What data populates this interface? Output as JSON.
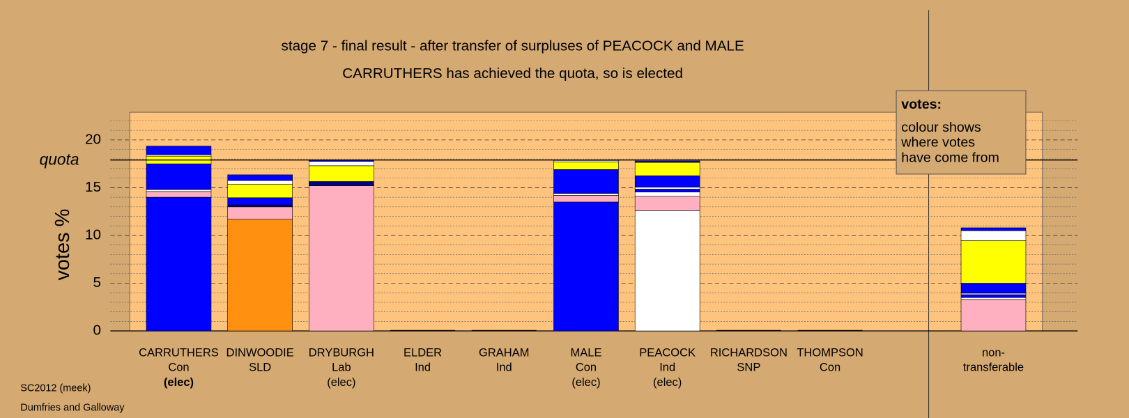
{
  "chart_data": {
    "type": "stacked_bar",
    "title": "stage 7 - final result - after transfer of surpluses of PEACOCK and MALE",
    "subtitle": "CARRUTHERS has achieved the quota, so is elected",
    "y_label": "votes %",
    "ylim": [
      0,
      22.9
    ],
    "yticks": [
      0,
      5,
      10,
      15,
      20
    ],
    "minor_yticks": [
      1,
      2,
      3,
      4,
      6,
      7,
      8,
      9,
      11,
      12,
      13,
      14,
      16,
      17,
      18,
      19,
      21,
      22
    ],
    "quota": 17.9,
    "quota_label": "quota",
    "legend": {
      "title": "votes:",
      "lines": [
        "colour shows",
        "where votes",
        "have come from"
      ]
    },
    "footer": [
      "SC2012 (meek)",
      "Dumfries and Galloway"
    ],
    "bars": [
      {
        "lines": [
          "CARRUTHERS",
          "Con",
          "(elec)"
        ],
        "bold": [
          false,
          false,
          true
        ],
        "segments": [
          {
            "color": "#0000ff",
            "value": 14.0
          },
          {
            "color": "#ffb0c0",
            "value": 0.6
          },
          {
            "color": "#ffffff",
            "value": 0.2
          },
          {
            "color": "#0000ff",
            "value": 2.7
          },
          {
            "color": "#ffff00",
            "value": 0.8
          },
          {
            "color": "#ffffff",
            "value": 0.15
          },
          {
            "color": "#0000ff",
            "value": 0.9
          }
        ]
      },
      {
        "lines": [
          "DINWOODIE",
          "SLD"
        ],
        "bold": [
          false,
          false
        ],
        "segments": [
          {
            "color": "#ff9010",
            "value": 11.7
          },
          {
            "color": "#ffb0c0",
            "value": 1.3
          },
          {
            "color": "#000080",
            "value": 0.2
          },
          {
            "color": "#0000ff",
            "value": 0.75
          },
          {
            "color": "#ffff00",
            "value": 1.4
          },
          {
            "color": "#ffffff",
            "value": 0.4
          },
          {
            "color": "#0000ff",
            "value": 0.6
          }
        ]
      },
      {
        "lines": [
          "DRYBURGH",
          "Lab",
          "(elec)"
        ],
        "bold": [
          false,
          false,
          false
        ],
        "segments": [
          {
            "color": "#ffb0c0",
            "value": 15.2
          },
          {
            "color": "#000080",
            "value": 0.45
          },
          {
            "color": "#ffff00",
            "value": 1.65
          },
          {
            "color": "#ffffff",
            "value": 0.45
          },
          {
            "color": "#0000ff",
            "value": 0.15
          }
        ]
      },
      {
        "lines": [
          "ELDER",
          "Ind"
        ],
        "bold": [
          false,
          false
        ],
        "segments": []
      },
      {
        "lines": [
          "GRAHAM",
          "Ind"
        ],
        "bold": [
          false,
          false
        ],
        "segments": []
      },
      {
        "lines": [
          "MALE",
          "Con",
          "(elec)"
        ],
        "bold": [
          false,
          false,
          false
        ],
        "segments": [
          {
            "color": "#0000ff",
            "value": 13.5
          },
          {
            "color": "#ffb0c0",
            "value": 0.7
          },
          {
            "color": "#ffffff",
            "value": 0.2
          },
          {
            "color": "#0000ff",
            "value": 2.5
          },
          {
            "color": "#ffff00",
            "value": 0.8
          },
          {
            "color": "#ffffff",
            "value": 0.15
          }
        ]
      },
      {
        "lines": [
          "PEACOCK",
          "Ind",
          "(elec)"
        ],
        "bold": [
          false,
          false,
          false
        ],
        "segments": [
          {
            "color": "#ffffff",
            "value": 12.6
          },
          {
            "color": "#ffb0c0",
            "value": 1.5
          },
          {
            "color": "#ffffff",
            "value": 0.45
          },
          {
            "color": "#0000ff",
            "value": 0.3
          },
          {
            "color": "#ffffff",
            "value": 0.2
          },
          {
            "color": "#0000ff",
            "value": 1.2
          },
          {
            "color": "#ffff00",
            "value": 1.4
          },
          {
            "color": "#0000ff",
            "value": 0.15
          }
        ]
      },
      {
        "lines": [
          "RICHARDSON",
          "SNP"
        ],
        "bold": [
          false,
          false
        ],
        "segments": []
      },
      {
        "lines": [
          "THOMPSON",
          "Con"
        ],
        "bold": [
          false,
          false
        ],
        "segments": []
      },
      {
        "lines": [
          "non-",
          "transferable"
        ],
        "bold": [
          false,
          false
        ],
        "segments": [
          {
            "color": "#ffb0c0",
            "value": 3.3
          },
          {
            "color": "#ffffff",
            "value": 0.2
          },
          {
            "color": "#0000ff",
            "value": 0.3
          },
          {
            "color": "#ffffff",
            "value": 0.15
          },
          {
            "color": "#0000ff",
            "value": 1.05
          },
          {
            "color": "#ffff00",
            "value": 4.45
          },
          {
            "color": "#ffffff",
            "value": 1.05
          },
          {
            "color": "#0000ff",
            "value": 0.3
          }
        ]
      }
    ]
  }
}
